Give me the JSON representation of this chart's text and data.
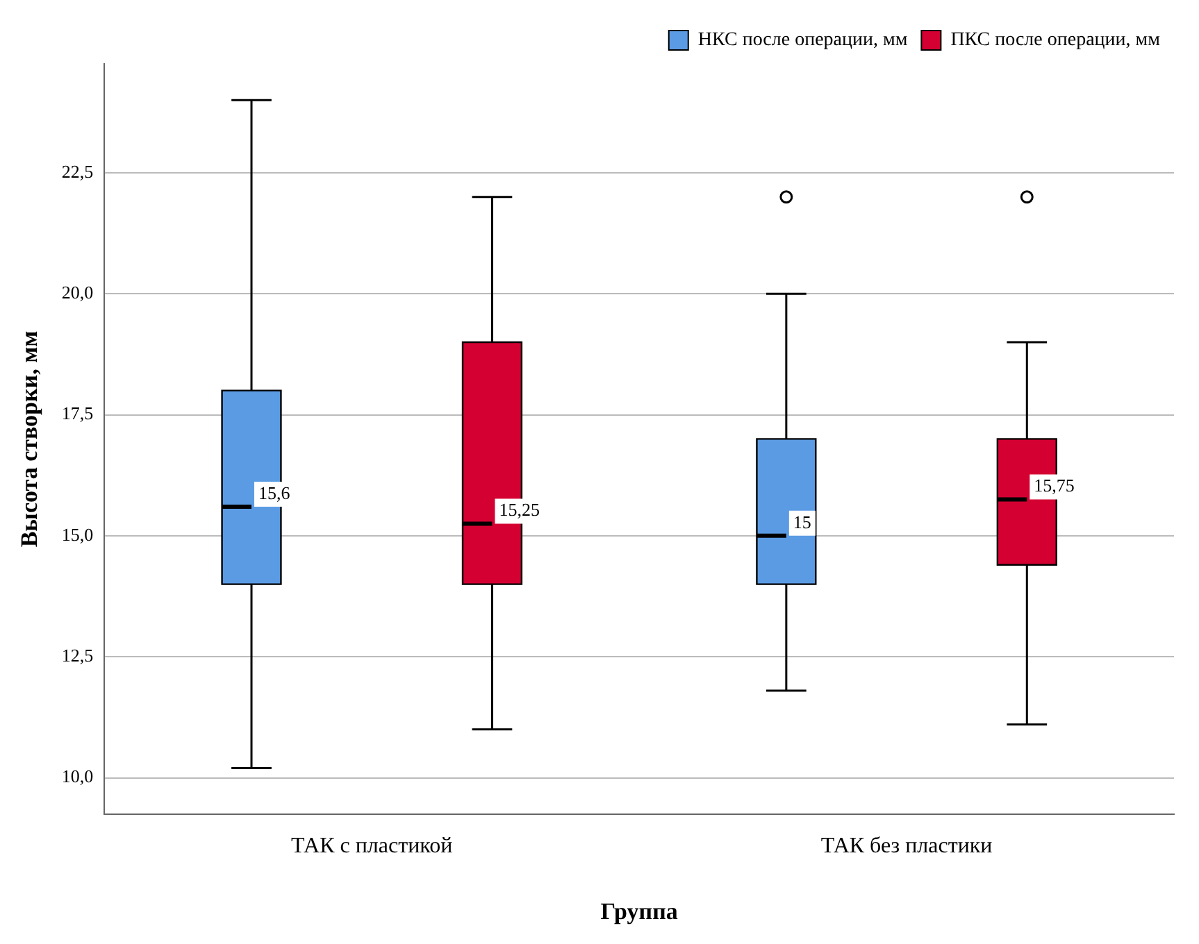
{
  "chart_data": {
    "type": "box",
    "xlabel": "Группа",
    "ylabel": "Высота створки, мм",
    "categories": [
      "ТАК с пластикой",
      "ТАК без пластики"
    ],
    "ylim": [
      9.25,
      24.75
    ],
    "yticks": [
      {
        "value": 10,
        "label": "10,0"
      },
      {
        "value": 12.5,
        "label": "12,5"
      },
      {
        "value": 15,
        "label": "15,0"
      },
      {
        "value": 17.5,
        "label": "17,5"
      },
      {
        "value": 20,
        "label": "20,0"
      },
      {
        "value": 22.5,
        "label": "22,5"
      }
    ],
    "grid": "y",
    "legend": "top right",
    "series": [
      {
        "name": "НКС после операции, мм",
        "color": "#5b9be4",
        "boxes": [
          {
            "low": 10.2,
            "q1": 14,
            "median": 15.6,
            "q3": 18,
            "high": 24
          },
          {
            "low": 11.8,
            "q1": 14,
            "median": 15,
            "q3": 17,
            "high": 20,
            "outliers": [
              22
            ]
          }
        ],
        "value_labels": [
          "15,6",
          "15"
        ]
      },
      {
        "name": "ПКС после операции, мм",
        "color": "#d50032",
        "boxes": [
          {
            "low": 11,
            "q1": 14,
            "median": 15.25,
            "q3": 19,
            "high": 22
          },
          {
            "low": 11.1,
            "q1": 14.4,
            "median": 15.75,
            "q3": 17,
            "high": 19,
            "outliers": [
              22
            ]
          }
        ],
        "value_labels": [
          "15,25",
          "15,75"
        ]
      }
    ]
  }
}
